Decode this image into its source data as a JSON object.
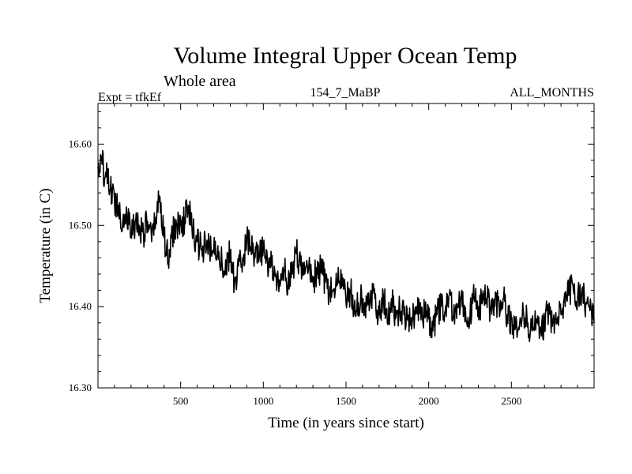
{
  "chart_data": {
    "type": "line",
    "title": "Volume Integral Upper Ocean Temp",
    "subtitle": "Whole area",
    "header_left": "Expt = tfkEf",
    "header_center": "154_7_MaBP",
    "header_right": "ALL_MONTHS",
    "xlabel": "Time (in years since start)",
    "ylabel": "Temperature (in C)",
    "xlim": [
      0,
      3000
    ],
    "ylim": [
      16.3,
      16.65
    ],
    "x_ticks": [
      500,
      1000,
      1500,
      2000,
      2500
    ],
    "x_tick_labels": [
      "500",
      "1000",
      "1500",
      "2000",
      "2500"
    ],
    "y_ticks": [
      16.3,
      16.4,
      16.5,
      16.6
    ],
    "y_tick_labels": [
      "16.30",
      "16.40",
      "16.50",
      "16.60"
    ],
    "grid": false,
    "line_color": "#000000",
    "series": [
      {
        "x": [
          0,
          25,
          50,
          75,
          100,
          125,
          150,
          175,
          200,
          225,
          250,
          275,
          300,
          325,
          350,
          375,
          400,
          425,
          450,
          475,
          500,
          525,
          550,
          575,
          600,
          625,
          650,
          675,
          700,
          725,
          750,
          775,
          800,
          825,
          850,
          875,
          900,
          925,
          950,
          975,
          1000,
          1025,
          1050,
          1075,
          1100,
          1125,
          1150,
          1175,
          1200,
          1225,
          1250,
          1275,
          1300,
          1325,
          1350,
          1375,
          1400,
          1425,
          1450,
          1475,
          1500,
          1525,
          1550,
          1575,
          1600,
          1625,
          1650,
          1675,
          1700,
          1725,
          1750,
          1775,
          1800,
          1825,
          1850,
          1875,
          1900,
          1925,
          1950,
          1975,
          2000,
          2025,
          2050,
          2075,
          2100,
          2125,
          2150,
          2175,
          2200,
          2225,
          2250,
          2275,
          2300,
          2325,
          2350,
          2375,
          2400,
          2425,
          2450,
          2475,
          2500,
          2525,
          2550,
          2575,
          2600,
          2625,
          2650,
          2675,
          2700,
          2725,
          2750,
          2775,
          2800,
          2825,
          2850,
          2875,
          2900,
          2925,
          2950,
          2975,
          3000
        ],
        "values": [
          16.57,
          16.575,
          16.56,
          16.545,
          16.53,
          16.525,
          16.505,
          16.515,
          16.49,
          16.505,
          16.5,
          16.49,
          16.505,
          16.48,
          16.51,
          16.535,
          16.485,
          16.455,
          16.49,
          16.5,
          16.5,
          16.51,
          16.52,
          16.49,
          16.48,
          16.47,
          16.475,
          16.47,
          16.47,
          16.475,
          16.455,
          16.44,
          16.47,
          16.425,
          16.45,
          16.46,
          16.485,
          16.47,
          16.46,
          16.46,
          16.47,
          16.455,
          16.45,
          16.44,
          16.425,
          16.445,
          16.43,
          16.44,
          16.465,
          16.45,
          16.44,
          16.45,
          16.435,
          16.44,
          16.445,
          16.43,
          16.415,
          16.42,
          16.43,
          16.44,
          16.405,
          16.42,
          16.4,
          16.405,
          16.41,
          16.4,
          16.42,
          16.41,
          16.39,
          16.415,
          16.38,
          16.41,
          16.385,
          16.4,
          16.39,
          16.39,
          16.38,
          16.4,
          16.405,
          16.39,
          16.385,
          16.37,
          16.39,
          16.4,
          16.395,
          16.415,
          16.39,
          16.4,
          16.42,
          16.385,
          16.39,
          16.41,
          16.4,
          16.405,
          16.41,
          16.395,
          16.4,
          16.405,
          16.41,
          16.39,
          16.385,
          16.375,
          16.38,
          16.39,
          16.38,
          16.37,
          16.385,
          16.375,
          16.38,
          16.395,
          16.38,
          16.385,
          16.39,
          16.4,
          16.42,
          16.42,
          16.41,
          16.415,
          16.405,
          16.395,
          16.38
        ]
      }
    ]
  }
}
